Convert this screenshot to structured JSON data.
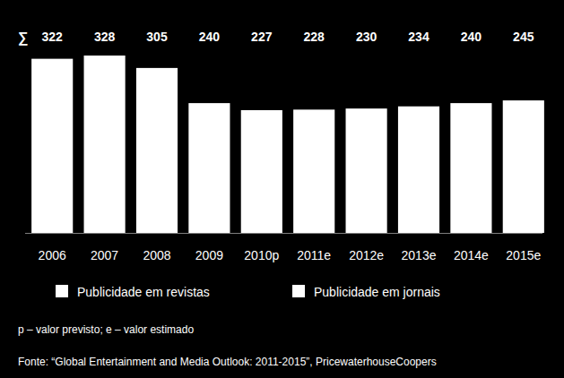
{
  "chart_data": {
    "type": "bar",
    "total_symbol": "∑",
    "categories": [
      "2006",
      "2007",
      "2008",
      "2009",
      "2010p",
      "2011e",
      "2012e",
      "2013e",
      "2014e",
      "2015e"
    ],
    "values": [
      322,
      328,
      305,
      240,
      227,
      228,
      230,
      234,
      240,
      245
    ],
    "color": "#ffffff",
    "ylim": [
      0,
      328
    ],
    "tick_labels": "x",
    "data_labels": true,
    "legend_entries": [
      {
        "name": "Publicidade em revistas",
        "color": "#ffffff"
      },
      {
        "name": "Publicidade em jornais",
        "color": "#ffffff"
      }
    ],
    "notes": [
      "p – valor previsto; e – valor estimado",
      "Fonte: “Global Entertainment and Media Outlook: 2011-2015”, PricewaterhouseCoopers"
    ]
  }
}
